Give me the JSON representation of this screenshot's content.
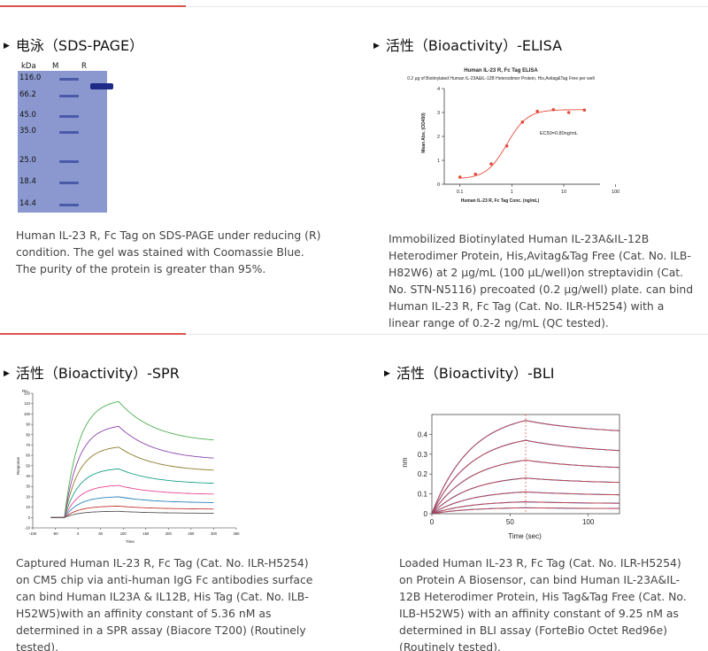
{
  "sections": {
    "sds": {
      "title": "电泳（SDS-PAGE）",
      "gel": {
        "lanes": [
          "kDa",
          "M",
          "R"
        ],
        "markers": [
          "116.0",
          "66.2",
          "45.0",
          "35.0",
          "25.0",
          "18.4",
          "14.4"
        ]
      },
      "description": "Human IL-23 R, Fc Tag on SDS-PAGE under reducing (R) condition. The gel was stained with Coomassie Blue. The purity of the protein is greater than 95%."
    },
    "elisa": {
      "title": "活性（Bioactivity）-ELISA",
      "description": "Immobilized Biotinylated Human IL-23A&IL-12B Heterodimer Protein, His,Avitag&Tag Free (Cat. No. ILB-H82W6) at 2 μg/mL (100 μL/well)on streptavidin (Cat. No. STN-N5116) precoated (0.2 μg/well) plate. can bind Human IL-23 R, Fc Tag (Cat. No. ILR-H5254) with a linear range of 0.2-2 ng/mL (QC tested).",
      "chart_data": {
        "type": "scatter",
        "title": "Human IL-23 R, Fc Tag ELISA",
        "subtitle": "0.2 μg of Biotinylated Human IL-23A&IL-12B Heterodimer Protein, His,Avitag&Tag Free per well",
        "xlabel": "Human IL-23 R, Fc Tag Conc. (ng/mL)",
        "ylabel": "Mean Abs. (OD450)",
        "xscale": "log",
        "xlim": [
          0.05,
          50
        ],
        "ylim": [
          0,
          4
        ],
        "xticks": [
          "0.1",
          "1",
          "10",
          "100"
        ],
        "yticks": [
          "0",
          "1",
          "2",
          "3",
          "4"
        ],
        "annotation": "EC50=0.80ng/mL",
        "x": [
          0.1,
          0.2,
          0.4,
          0.8,
          1.6,
          3.1,
          6.3,
          12.5,
          25
        ],
        "y": [
          0.3,
          0.42,
          0.85,
          1.6,
          2.6,
          3.05,
          3.12,
          3.0,
          3.1
        ]
      }
    },
    "spr": {
      "title": "活性（Bioactivity）-SPR",
      "description": "Captured Human IL-23 R, Fc Tag (Cat. No. ILR-H5254) on CM5 chip via anti-human IgG Fc antibodies surface can bind Human IL23A & IL12B, His Tag (Cat. No. ILB-H52W5)with an affinity constant of 5.36 nM as determined in a SPR assay (Biacore T200) (Routinely tested).",
      "chart_data": {
        "type": "line",
        "xlabel": "Time",
        "ylabel": "Response",
        "unit_label": "RU",
        "xlim": [
          -100,
          350
        ],
        "ylim": [
          -10,
          120
        ],
        "xticks": [
          "-100",
          "-50",
          "0",
          "50",
          "100",
          "150",
          "200",
          "250",
          "300",
          "350"
        ],
        "yticks": [
          "-10",
          "0",
          "10",
          "20",
          "30",
          "40",
          "50",
          "60",
          "70",
          "80",
          "90",
          "100",
          "110",
          "120"
        ],
        "series": [
          {
            "peak": 112,
            "end": 72,
            "color": "#4caf50"
          },
          {
            "peak": 88,
            "end": 55,
            "color": "#8e44ad"
          },
          {
            "peak": 68,
            "end": 44,
            "color": "#8d7a2a"
          },
          {
            "peak": 47,
            "end": 32,
            "color": "#16a085"
          },
          {
            "peak": 31,
            "end": 22,
            "color": "#e84393"
          },
          {
            "peak": 20,
            "end": 14,
            "color": "#2980b9"
          },
          {
            "peak": 11,
            "end": 8,
            "color": "#c0392b"
          },
          {
            "peak": 6,
            "end": 4,
            "color": "#555555"
          }
        ]
      }
    },
    "bli": {
      "title": "活性（Bioactivity）-BLI",
      "description": "Loaded Human IL-23 R, Fc Tag (Cat. No. ILR-H5254) on Protein A Biosensor, can bind Human IL-23A&IL-12B Heterodimer Protein, His Tag&Tag Free (Cat. No. ILB-H52W5) with an affinity constant of 9.25 nM as determined in BLI assay (ForteBio Octet Red96e) (Routinely tested).",
      "chart_data": {
        "type": "line",
        "xlabel": "Time (sec)",
        "ylabel": "nm",
        "xlim": [
          0,
          120
        ],
        "ylim": [
          0,
          0.5
        ],
        "xticks": [
          "0",
          "50",
          "100"
        ],
        "yticks": [
          "0",
          "0.1",
          "0.2",
          "0.3",
          "0.4"
        ],
        "dissociation_start": 60,
        "series": [
          {
            "peak": 0.47,
            "end": 0.4
          },
          {
            "peak": 0.37,
            "end": 0.3
          },
          {
            "peak": 0.27,
            "end": 0.22
          },
          {
            "peak": 0.18,
            "end": 0.15
          },
          {
            "peak": 0.11,
            "end": 0.09
          },
          {
            "peak": 0.06,
            "end": 0.05
          },
          {
            "peak": 0.03,
            "end": 0.025
          }
        ]
      }
    }
  },
  "colors": {
    "accent_line": "#d9534f",
    "fit_line": "#e74c3c",
    "bli_fit": "#e74c3c",
    "bli_data": "#2c3e9e"
  }
}
